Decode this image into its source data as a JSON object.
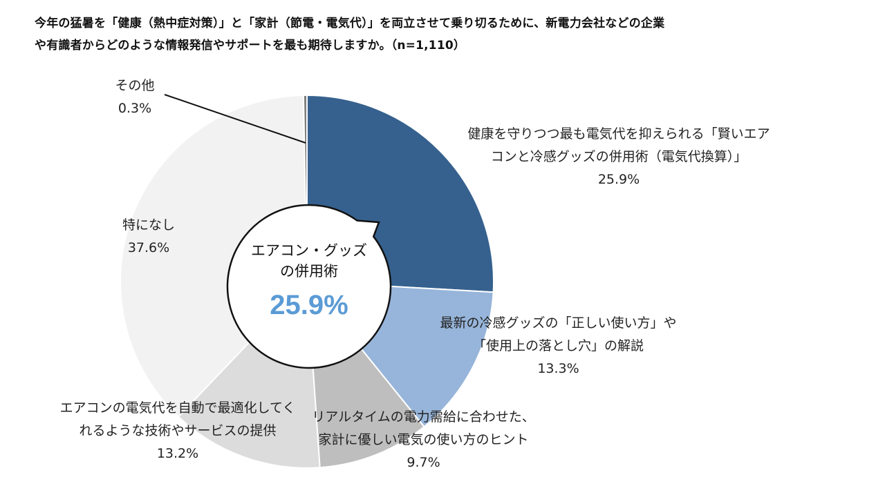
{
  "title": {
    "line1": "今年の猛暑を「健康（熱中症対策）」と「家計（節電・電気代）」を両立させて乗り切るために、新電力会社などの企業",
    "line2": "や有識者からどのような情報発信やサポートを最も期待しますか。（n=1,110）"
  },
  "center": {
    "line1": "エアコン・グッズ",
    "line2": "の併用術",
    "value": "25.9%"
  },
  "chart_data": {
    "type": "pie",
    "n": "n=1,110",
    "slices": [
      {
        "label_lines": [
          "健康を守りつつ最も電気代を抑えられる「賢いエア",
          "コンと冷感グッズの併用術（電気代換算）」"
        ],
        "value": 25.9,
        "pct": "25.9%",
        "color": "#36618E"
      },
      {
        "label_lines": [
          "最新の冷感グッズの「正しい使い方」や",
          "「使用上の落とし穴」の解説"
        ],
        "value": 13.3,
        "pct": "13.3%",
        "color": "#97B5DA"
      },
      {
        "label_lines": [
          "リアルタイムの電力需給に合わせた、",
          "家計に優しい電気の使い方のヒント"
        ],
        "value": 9.7,
        "pct": "9.7%",
        "color": "#BEBEBE"
      },
      {
        "label_lines": [
          "エアコンの電気代を自動で最適化してく",
          "れるような技術やサービスの提供"
        ],
        "value": 13.2,
        "pct": "13.2%",
        "color": "#DCDCDC"
      },
      {
        "label_lines": [
          "特になし"
        ],
        "value": 37.6,
        "pct": "37.6%",
        "color": "#F2F2F2"
      },
      {
        "label_lines": [
          "その他"
        ],
        "value": 0.3,
        "pct": "0.3%",
        "color": "#7F7F7F"
      }
    ]
  }
}
